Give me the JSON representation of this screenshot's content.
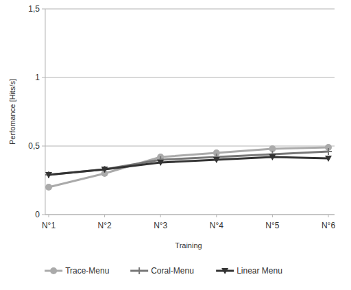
{
  "chart_data": {
    "type": "line",
    "y_label": "Perfomance [Hits/s]",
    "x_label": "Training",
    "categories": [
      "N°1",
      "N°2",
      "N°3",
      "N°4",
      "N°5",
      "N°6"
    ],
    "series": [
      {
        "name": "Trace-Menu",
        "color": "#aaaaaa",
        "marker": "circle",
        "values": [
          0.2,
          0.3,
          0.42,
          0.45,
          0.48,
          0.49
        ]
      },
      {
        "name": "Coral-Menu",
        "color": "#777777",
        "marker": "plus",
        "values": [
          0.29,
          0.33,
          0.4,
          0.42,
          0.44,
          0.46
        ]
      },
      {
        "name": "Linear Menu",
        "color": "#333333",
        "marker": "triangle-down",
        "values": [
          0.29,
          0.33,
          0.38,
          0.4,
          0.42,
          0.41
        ]
      }
    ],
    "ylim": [
      0,
      1.5
    ],
    "yticks": [
      0,
      {
        "value": 0.5,
        "label": "0,5"
      },
      1,
      {
        "value": 1.5,
        "label": "1,5"
      }
    ],
    "grid": true,
    "legend": "bottom"
  }
}
